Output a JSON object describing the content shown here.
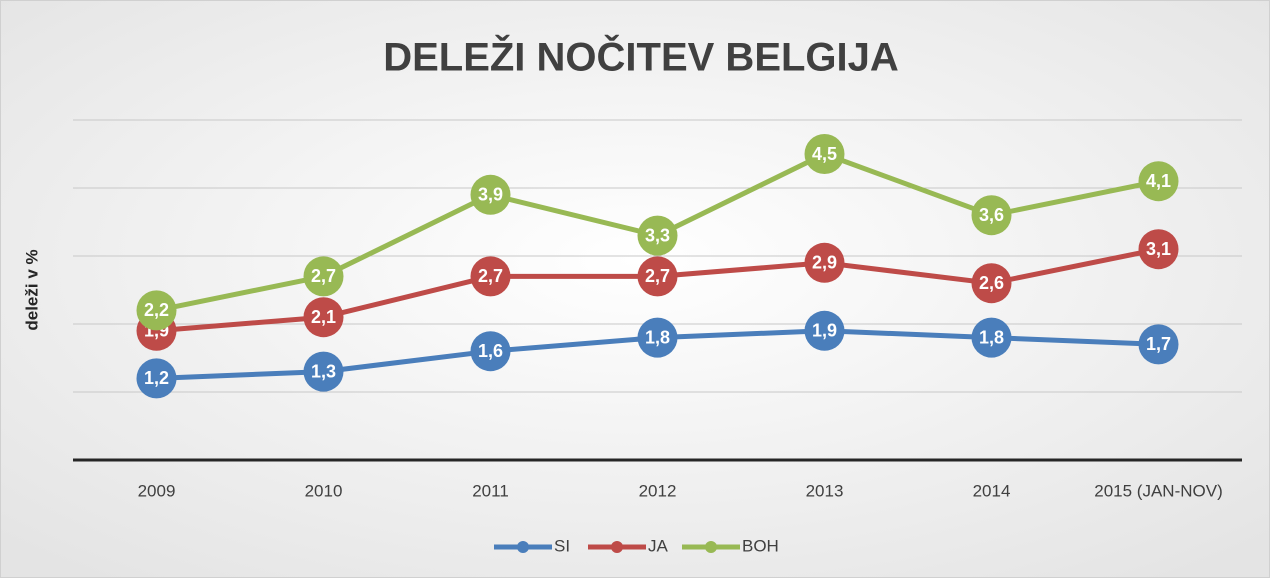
{
  "chart_data": {
    "type": "line",
    "title": "DELEŽI NOČITEV BELGIJA",
    "y_label": "deleži v %",
    "categories": [
      "2009",
      "2010",
      "2011",
      "2012",
      "2013",
      "2014",
      "2015 (JAN-NOV)"
    ],
    "series": [
      {
        "name": "SI",
        "color": "#4a7ebb",
        "values": [
          1.2,
          1.3,
          1.6,
          1.8,
          1.9,
          1.8,
          1.7
        ],
        "value_labels": [
          "1,2",
          "1,3",
          "1,6",
          "1,8",
          "1,9",
          "1,8",
          "1,7"
        ]
      },
      {
        "name": "JA",
        "color": "#be4b48",
        "values": [
          1.9,
          2.1,
          2.7,
          2.7,
          2.9,
          2.6,
          3.1
        ],
        "value_labels": [
          "1,9",
          "2,1",
          "2,7",
          "2,7",
          "2,9",
          "2,6",
          "3,1"
        ]
      },
      {
        "name": "BOH",
        "color": "#98b954",
        "values": [
          2.2,
          2.7,
          3.9,
          3.3,
          4.5,
          3.6,
          4.1
        ],
        "value_labels": [
          "2,2",
          "2,7",
          "3,9",
          "3,3",
          "4,5",
          "3,6",
          "4,1"
        ]
      }
    ],
    "ylim": [
      0,
      5
    ],
    "yticks": [
      0,
      1,
      2,
      3,
      4,
      5
    ],
    "grid": true,
    "legend": "bottom"
  }
}
